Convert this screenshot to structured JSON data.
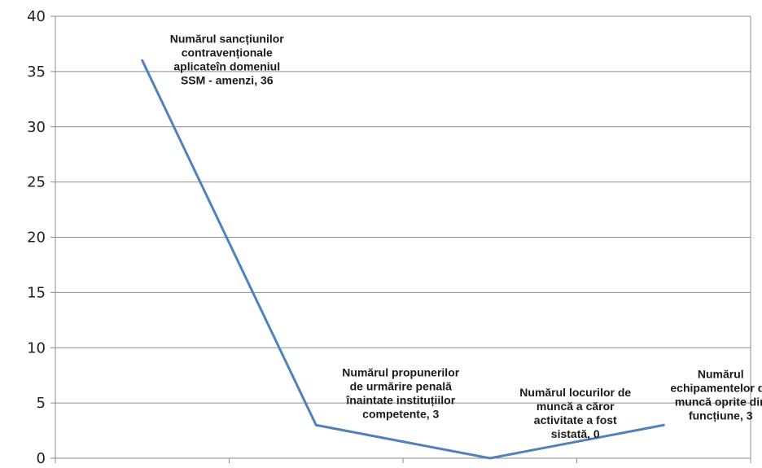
{
  "chart_data": {
    "type": "line",
    "title": "",
    "xlabel": "",
    "ylabel": "",
    "ylim": [
      0,
      40
    ],
    "yticks": [
      0,
      5,
      10,
      15,
      20,
      25,
      30,
      35,
      40
    ],
    "grid": true,
    "legend": "none",
    "series_color": "#4f81bd",
    "categories": [
      "Numărul sancțiunilor contravenționale aplicate în domeniul SSM - amenzi",
      "Numărul propunerilor de urmărire penală înaintate instituțiilor competente",
      "Numărul locurilor de muncă a căror activitate a fost sistată",
      "Numărul echipamentelor de muncă oprite din funcțiune"
    ],
    "values": [
      36,
      3,
      0,
      3
    ],
    "data_labels": [
      [
        "Numărul sancțiunilor",
        "contravenționale",
        "aplicateîn domeniul",
        "SSM - amenzi, 36"
      ],
      [
        "Numărul propunerilor",
        "de urmărire penală",
        "înaintate instituțiilor",
        "competente, 3"
      ],
      [
        "Numărul locurilor de",
        "muncă a căror",
        "activitate a fost",
        "sistată, 0"
      ],
      [
        "Numărul",
        "echipamentelor de",
        "muncă oprite din",
        "funcțiune, 3"
      ]
    ]
  }
}
